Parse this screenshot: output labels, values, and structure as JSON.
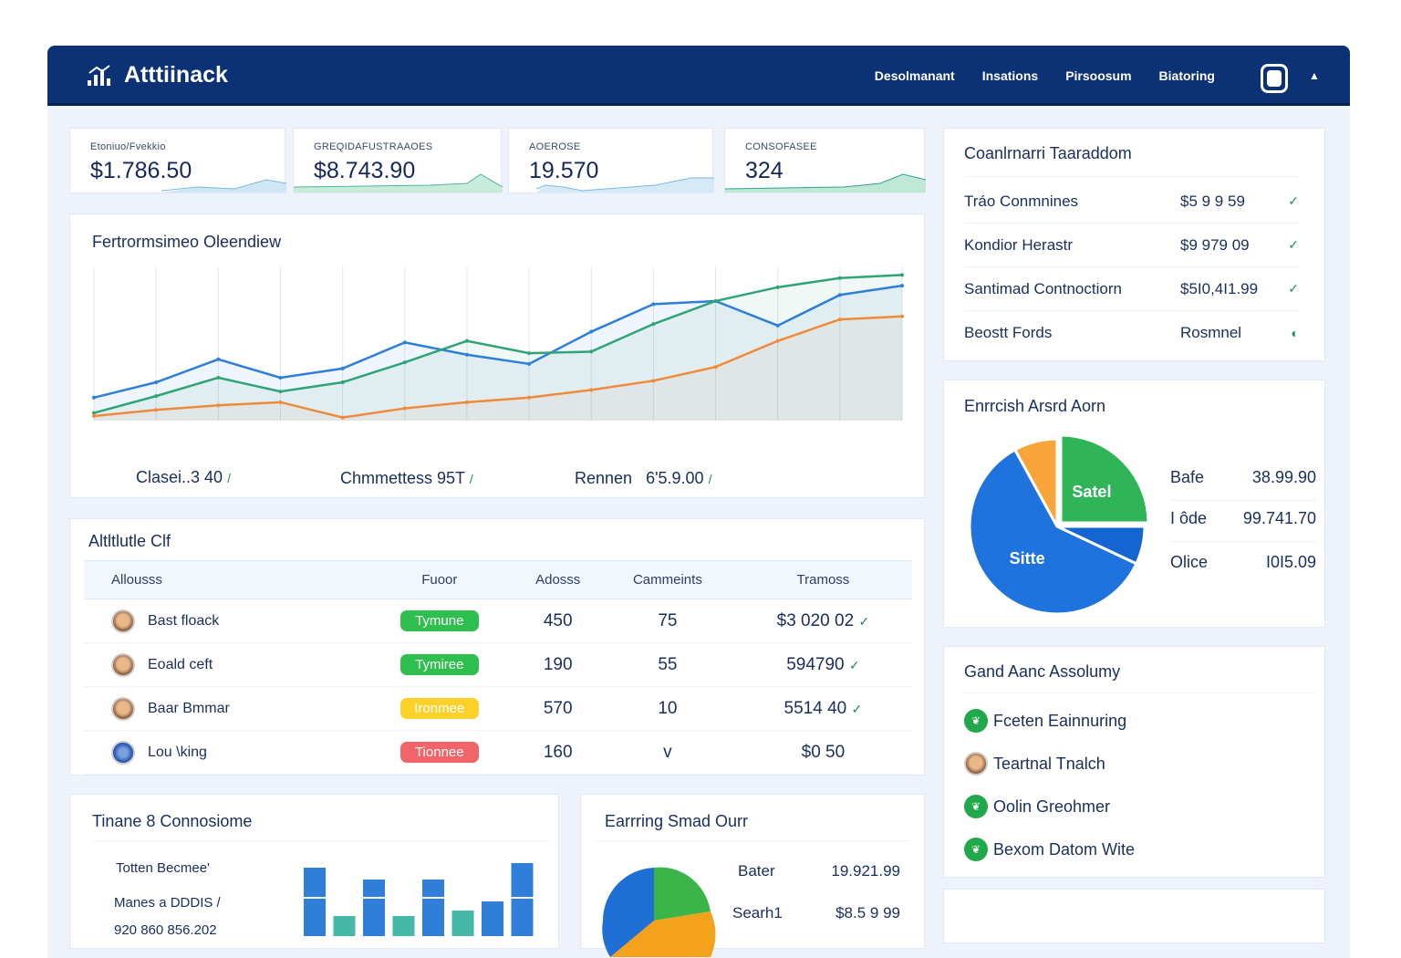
{
  "app": {
    "title": "Atttiinack",
    "logo_icon": "chart-logo-icon"
  },
  "nav": [
    "Desolmanant",
    "Insations",
    "Pirsoosum",
    "Biatoring"
  ],
  "stats": [
    {
      "label": "Etoniuo/Fvekkio",
      "value": "$1.786.50"
    },
    {
      "label": "GREQIDAFUSTRAAOES",
      "value": "$8.743.90"
    },
    {
      "label": "AOEROSE",
      "value": "19.570"
    },
    {
      "label": "CONSOFASEE",
      "value": "324"
    }
  ],
  "overview": {
    "title": "Fertrormsimeo Oleendiew",
    "summary": [
      {
        "label": "Clasei..3 40"
      },
      {
        "label": "Chmmettess 95T"
      },
      {
        "label": "Rennen",
        "value": "6'5.9.00"
      }
    ]
  },
  "chart_data": [
    {
      "type": "line",
      "series": [
        {
          "color": "#2f7fd8",
          "values": [
            15,
            25,
            40,
            28,
            34,
            51,
            43,
            37,
            58,
            76,
            78,
            62,
            82,
            88
          ]
        },
        {
          "color": "#2fa476",
          "values": [
            5,
            16,
            28,
            19,
            25,
            38,
            52,
            44,
            45,
            63,
            78,
            87,
            93,
            95
          ]
        },
        {
          "color": "#ef8a3a",
          "values": [
            3,
            7,
            10,
            12,
            2,
            8,
            12,
            15,
            20,
            26,
            35,
            52,
            66,
            68
          ]
        }
      ]
    },
    {
      "type": "pie",
      "slices": [
        {
          "label": "Satel",
          "value": 25,
          "color": "#2fb457"
        },
        {
          "label": "",
          "value": 7,
          "color": "#1565d0"
        },
        {
          "label": "Sitte",
          "value": 60,
          "color": "#1f73dc"
        },
        {
          "label": "",
          "value": 8,
          "color": "#f7a53a"
        }
      ]
    },
    {
      "type": "bar",
      "series": [
        {
          "color": "#2f7fd8",
          "values": [
            75,
            0,
            62,
            0,
            62,
            0,
            38,
            80
          ]
        },
        {
          "color": "#45b8a8",
          "values": [
            0,
            22,
            0,
            22,
            0,
            28,
            0,
            0
          ]
        }
      ]
    }
  ],
  "top_list": {
    "title": "Coanlrnarri Taaraddom",
    "rows": [
      {
        "name": "Tráo Conmnines",
        "value": "$5 9 9 59",
        "mark": "✓"
      },
      {
        "name": "Kondior Herastr",
        "value": "$9 979 09",
        "mark": "✓"
      },
      {
        "name": "Santimad Contnoctiorn",
        "value": "$5I0,4I1.99",
        "mark": "✓"
      },
      {
        "name": "Beostt Fords",
        "value": "Rosmnel",
        "mark": "◐"
      }
    ]
  },
  "pie_card": {
    "title": "Enrrcish Arsrd Aorn",
    "legend": [
      {
        "label": "Bafe",
        "value": "38.99.90"
      },
      {
        "label": "I ôde",
        "value": "99.741.70"
      },
      {
        "label": "Olice",
        "value": "I0I5.09"
      }
    ]
  },
  "table": {
    "title": "Altltlutle Clf",
    "headers": [
      "Allousss",
      "Fuoor",
      "Adosss",
      "Cammeints",
      "Tramoss"
    ],
    "rows": [
      {
        "name": "Bast floack",
        "status": "Tymune",
        "status_color": "#2fbf4f",
        "adds": "450",
        "comments": "75",
        "total": "$3 020 02",
        "mark": "✓",
        "avatar": "person"
      },
      {
        "name": "Eoald ceft",
        "status": "Tymiree",
        "status_color": "#2fbf4f",
        "adds": "190",
        "comments": "55",
        "total": "594790",
        "mark": "✓",
        "avatar": "person"
      },
      {
        "name": "Baar Bmmar",
        "status": "Ironmee",
        "status_color": "#fcd12a",
        "adds": "570",
        "comments": "10",
        "total": "5514 40",
        "mark": "✓",
        "avatar": "person"
      },
      {
        "name": "Lou \\king",
        "status": "Tionnee",
        "status_color": "#f0646a",
        "adds": "160",
        "comments": "v",
        "total": "$0 50",
        "mark": "",
        "avatar": "globe"
      }
    ]
  },
  "activity": {
    "title": "Gand Aanc Assolumy",
    "items": [
      {
        "label": "Fceten Eainnuring",
        "icon": "leaf-icon"
      },
      {
        "label": "Teartnal Tnalch",
        "icon": "avatar"
      },
      {
        "label": "Oolin  Greohmer",
        "icon": "leaf-icon"
      },
      {
        "label": "Bexom Datom Wite",
        "icon": "leaf-icon"
      }
    ]
  },
  "bottom_left": {
    "title": "Tinane 8 Connosiome",
    "lines": [
      "Totten Becmee'",
      "Manes a DDDIS /",
      "920 860 856.202"
    ]
  },
  "bottom_mid": {
    "title": "Earrring Smad Ourr",
    "legend": [
      {
        "label": "Bater",
        "value": "19.921.99"
      },
      {
        "label": "Searh1",
        "value": "$8.5 9 99"
      }
    ]
  }
}
